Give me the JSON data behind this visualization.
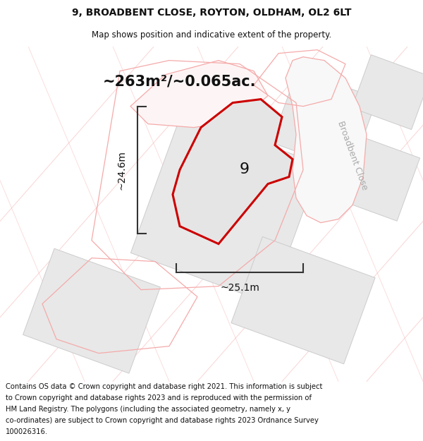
{
  "title_line1": "9, BROADBENT CLOSE, ROYTON, OLDHAM, OL2 6LT",
  "title_line2": "Map shows position and indicative extent of the property.",
  "area_text": "~263m²/~0.065ac.",
  "width_label": "~25.1m",
  "height_label": "~24.6m",
  "plot_label": "9",
  "road_label": "Broadbent Close",
  "footer_text": "Contains OS data © Crown copyright and database right 2021. This information is subject to Crown copyright and database rights 2023 and is reproduced with the permission of HM Land Registry. The polygons (including the associated geometry, namely x, y co-ordinates) are subject to Crown copyright and database rights 2023 Ordnance Survey 100026316.",
  "bg_color": "#ffffff",
  "plot_fill": "#e0e0e0",
  "plot_edge": "#cc0000",
  "block_fill": "#e8e8e8",
  "block_edge": "#cccccc",
  "pink_edge": "#f5aaaa",
  "pink_fill": "#fce8e8",
  "dim_line_color": "#333333",
  "road_text_color": "#aaaaaa",
  "title_fontsize": 10,
  "subtitle_fontsize": 8.5,
  "area_fontsize": 15,
  "label_fontsize": 16,
  "dim_fontsize": 10,
  "footer_fontsize": 7.2
}
